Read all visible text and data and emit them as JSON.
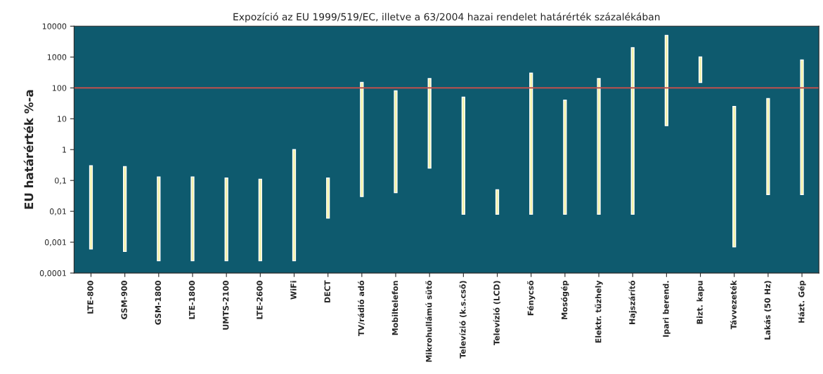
{
  "chart_data": {
    "type": "bar",
    "title": "Expozíció az EU 1999/519/EC, illetve a 63/2004 hazai rendelet határérték százalékában",
    "ylabel": "EU határérték %-a",
    "categories": [
      "LTE-800",
      "GSM-900",
      "GSM-1800",
      "LTE-1800",
      "UMTS-2100",
      "LTE-2600",
      "WiFi",
      "DECT",
      "TV/rádió adó",
      "Mobiltelefon",
      "Mikrohullámú sütő",
      "Televízió (k.s.cső)",
      "Televízió (LCD)",
      "Fénycső",
      "Mosógép",
      "Elektr. tűzhely",
      "Hajszárító",
      "Ipari berend.",
      "Bizt. kapu",
      "Távvezeték",
      "Lakás (50 Hz)",
      "Házt. Gép"
    ],
    "base": [
      0.0006,
      0.0005,
      0.00025,
      0.00025,
      0.00025,
      0.00025,
      0.00025,
      0.006,
      0.03,
      0.04,
      0.25,
      0.008,
      0.008,
      0.008,
      0.008,
      0.008,
      0.008,
      6,
      150,
      0.0007,
      0.035,
      0.035
    ],
    "values": [
      0.2994,
      0.2795,
      0.12975,
      0.12975,
      0.11975,
      0.10975,
      0.99975,
      0.114,
      149.97,
      79.96,
      199.75,
      49.992,
      0.042,
      299.992,
      39.992,
      199.992,
      1999.992,
      4994,
      850,
      24.9993,
      44.965,
      799.965
    ],
    "color": "#f2f2a6",
    "log": true,
    "ylim": [
      0.0001,
      10000
    ],
    "yticks": [
      {
        "value": 0.0001,
        "label": "0,0001"
      },
      {
        "value": 0.001,
        "label": "0,001"
      },
      {
        "value": 0.01,
        "label": "0,01"
      },
      {
        "value": 0.1,
        "label": "0,1"
      },
      1,
      10,
      100,
      1000,
      10000
    ],
    "ref_lines": [
      {
        "axis": "y",
        "value": 100,
        "color": "#c0504d"
      }
    ],
    "grid": false,
    "legend": false
  }
}
